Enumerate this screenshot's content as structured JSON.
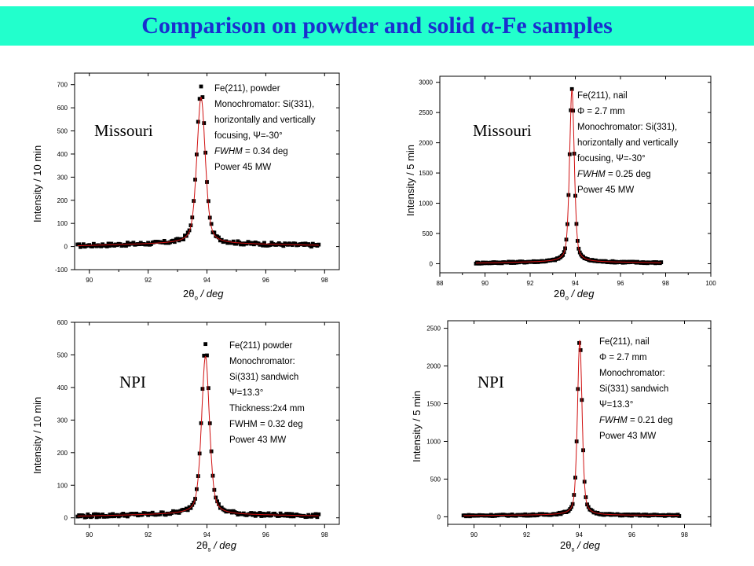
{
  "title": {
    "prefix": "Comparison on powder and solid ",
    "symbol": "α",
    "suffix": "-Fe samples",
    "color": "#1a2fcf",
    "background": "#22ffcc"
  },
  "colors": {
    "marker": "#000000",
    "fit_line": "#d01010",
    "axis": "#000000"
  },
  "chart_data": [
    {
      "id": "missouri-powder",
      "type": "scatter",
      "site_label": "Missouri",
      "ylabel": "Intensity / 10 min",
      "xlabel_prefix": "2θ",
      "xlabel_sub": "o",
      "xlabel_suffix": " / deg",
      "xlim": [
        89.5,
        98.5
      ],
      "ylim": [
        -100,
        750
      ],
      "xticks": [
        90,
        92,
        94,
        96,
        98
      ],
      "yticks": [
        -100,
        0,
        100,
        200,
        300,
        400,
        500,
        600,
        700
      ],
      "legend": [
        "Fe(211), powder",
        "Monochromator: Si(331),",
        "horizontally and vertically",
        "focusing, Ψ=-30°",
        "FWHM = 0.34 deg",
        "Power 45 MW"
      ],
      "legend_italic_first_word": [
        false,
        false,
        false,
        false,
        true,
        false
      ],
      "peak": {
        "center": 93.8,
        "fwhm": 0.34,
        "height": 690,
        "fit_height": 645
      },
      "baseline": {
        "x": [
          89.6,
          93.4,
          94.6,
          97.8
        ],
        "y": [
          3,
          15,
          12,
          5
        ]
      },
      "x_range_data": [
        89.6,
        97.8
      ],
      "marker_step": 0.05,
      "noise": 7,
      "series": [
        {
          "name": "",
          "kind": "measured",
          "marker": "square"
        },
        {
          "name": "",
          "kind": "fit",
          "line": "solid"
        }
      ]
    },
    {
      "id": "missouri-nail",
      "type": "scatter",
      "site_label": "Missouri",
      "ylabel": "Intensity / 5 min",
      "xlabel_prefix": "2θ",
      "xlabel_sub": "o",
      "xlabel_suffix": " / deg",
      "xlim": [
        88,
        100
      ],
      "ylim": [
        -150,
        3100
      ],
      "xticks": [
        88,
        90,
        92,
        94,
        96,
        98,
        100
      ],
      "yticks": [
        0,
        500,
        1000,
        1500,
        2000,
        2500,
        3000
      ],
      "legend": [
        "Fe(211), nail",
        "Φ = 2.7 mm",
        "Monochromator: Si(331),",
        "horizontally and vertically",
        "focusing, Ψ=-30°",
        "FWHM = 0.25 deg",
        "Power 45 MW"
      ],
      "legend_italic_first_word": [
        false,
        false,
        false,
        false,
        false,
        true,
        false
      ],
      "peak": {
        "center": 93.85,
        "fwhm": 0.25,
        "height": 2880,
        "fit_height": 2870
      },
      "baseline": {
        "x": [
          89.6,
          93.4,
          94.6,
          97.8
        ],
        "y": [
          10,
          35,
          30,
          15
        ]
      },
      "x_range_data": [
        89.6,
        97.8
      ],
      "marker_step": 0.05,
      "noise": 12,
      "series": [
        {
          "name": "",
          "kind": "measured",
          "marker": "square"
        },
        {
          "name": "",
          "kind": "fit",
          "line": "solid"
        }
      ]
    },
    {
      "id": "npi-powder",
      "type": "scatter",
      "site_label": "NPI",
      "ylabel": "Intensity / 10 min",
      "xlabel_prefix": "2θ",
      "xlabel_sub": "s",
      "xlabel_suffix": " / deg",
      "xlim": [
        89.5,
        98.5
      ],
      "ylim": [
        -20,
        600
      ],
      "xticks": [
        90,
        92,
        94,
        96,
        98
      ],
      "yticks": [
        0,
        100,
        200,
        300,
        400,
        500,
        600
      ],
      "legend": [
        "Fe(211) powder",
        "Monochromator:",
        "Si(331) sandwich",
        "Ψ=13.3°",
        "Thickness:2x4 mm",
        "FWHM = 0.32 deg",
        "Power 43 MW"
      ],
      "legend_italic_first_word": [
        false,
        false,
        false,
        false,
        false,
        false,
        false
      ],
      "peak": {
        "center": 93.95,
        "fwhm": 0.32,
        "height": 535,
        "fit_height": 495
      },
      "baseline": {
        "x": [
          89.6,
          93.4,
          94.6,
          97.8
        ],
        "y": [
          5,
          12,
          10,
          6
        ]
      },
      "x_range_data": [
        89.6,
        97.8
      ],
      "marker_step": 0.05,
      "noise": 5,
      "series": [
        {
          "name": "",
          "kind": "measured",
          "marker": "square"
        },
        {
          "name": "",
          "kind": "fit",
          "line": "solid"
        }
      ]
    },
    {
      "id": "npi-nail",
      "type": "scatter",
      "site_label": "NPI",
      "ylabel": "Intensity / 5 min",
      "xlabel_prefix": "2θ",
      "xlabel_sub": "s",
      "xlabel_suffix": " / deg",
      "xlim": [
        89,
        99
      ],
      "ylim": [
        -100,
        2600
      ],
      "xticks": [
        90,
        92,
        94,
        96,
        98
      ],
      "yticks": [
        0,
        500,
        1000,
        1500,
        2000,
        2500
      ],
      "legend": [
        "Fe(211), nail",
        "Φ = 2.7 mm",
        "Monochromator:",
        "Si(331) sandwich",
        "Ψ=13.3°",
        "FWHM = 0.21 deg",
        "Power 43 MW"
      ],
      "legend_italic_first_word": [
        false,
        false,
        false,
        false,
        false,
        true,
        false
      ],
      "peak": {
        "center": 94.02,
        "fwhm": 0.21,
        "height": 2370,
        "fit_height": 2340
      },
      "baseline": {
        "x": [
          89.6,
          93.4,
          94.6,
          97.8
        ],
        "y": [
          15,
          25,
          22,
          18
        ]
      },
      "x_range_data": [
        89.6,
        97.8
      ],
      "marker_step": 0.05,
      "noise": 10,
      "series": [
        {
          "name": "",
          "kind": "measured",
          "marker": "square"
        },
        {
          "name": "",
          "kind": "fit",
          "line": "solid"
        }
      ]
    }
  ]
}
